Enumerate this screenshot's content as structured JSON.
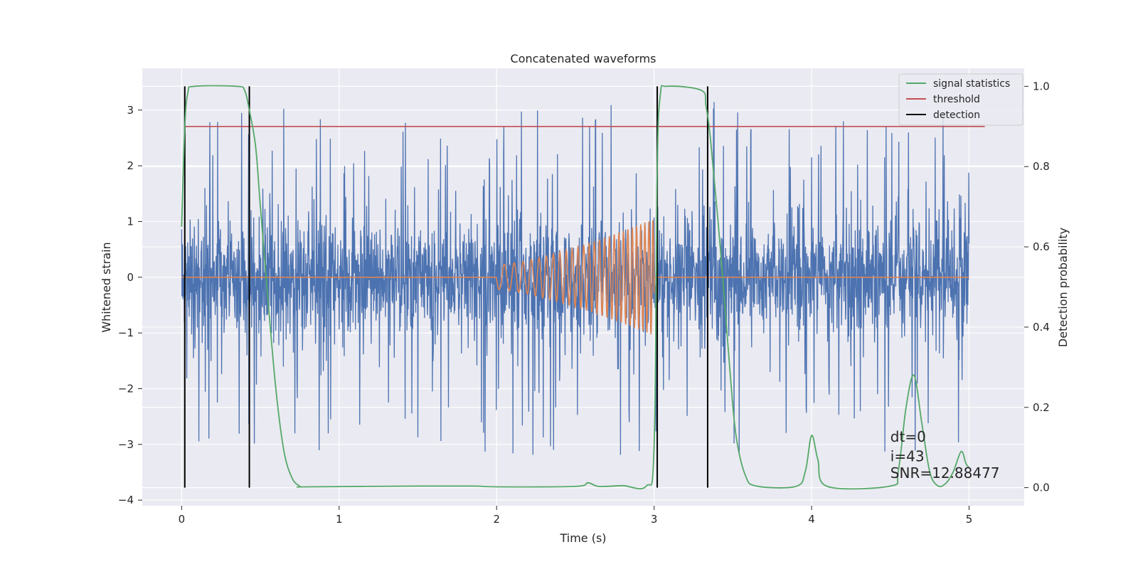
{
  "chart_data": {
    "type": "line",
    "title": "Concatenated waveforms",
    "xlabel": "Time (s)",
    "ylabel": "Whitened strain",
    "y2label": "Detection probability",
    "xlim": [
      -0.25,
      5.35
    ],
    "ylim": [
      -4.1,
      3.75
    ],
    "y2lim": [
      -0.045,
      1.045
    ],
    "xticks": [
      0,
      1,
      2,
      3,
      4,
      5
    ],
    "yticks": [
      -4,
      -3,
      -2,
      -1,
      0,
      1,
      2,
      3
    ],
    "yticklabels": [
      "−4",
      "−3",
      "−2",
      "−1",
      "0",
      "1",
      "2",
      "3"
    ],
    "y2ticks": [
      0.0,
      0.2,
      0.4,
      0.6,
      0.8,
      1.0
    ],
    "y2ticklabels": [
      "0.0",
      "0.2",
      "0.4",
      "0.6",
      "0.8",
      "1.0"
    ],
    "grid": true,
    "legend_position": "top-right",
    "series": [
      {
        "name": "",
        "axis": "left",
        "color": "#4c72b0",
        "kind": "noise",
        "x_range": [
          0,
          5
        ],
        "core_amplitude": 0.85,
        "peak_amplitude": 3.2
      },
      {
        "name": "",
        "axis": "left",
        "color": "#dd8452",
        "kind": "chirp",
        "x_range": [
          0,
          5
        ],
        "chirp_start": 2.0,
        "chirp_end": 3.0,
        "start_amplitude": 0.22,
        "end_amplitude": 1.05,
        "start_frequency_hz": 14,
        "end_frequency_hz": 40
      },
      {
        "name": "signal statistics",
        "axis": "right",
        "color": "#55a868",
        "x": [
          0.0,
          0.02,
          0.04,
          0.08,
          0.35,
          0.4,
          0.43,
          0.47,
          0.5,
          0.55,
          0.6,
          0.65,
          0.7,
          0.75,
          0.8,
          1.5,
          1.85,
          2.0,
          2.5,
          2.58,
          2.65,
          2.8,
          2.95,
          3.0,
          3.02,
          3.04,
          3.08,
          3.3,
          3.33,
          3.36,
          3.42,
          3.48,
          3.52,
          3.58,
          3.65,
          3.9,
          3.96,
          4.0,
          4.04,
          4.1,
          4.5,
          4.55,
          4.6,
          4.65,
          4.7,
          4.75,
          4.8,
          4.85,
          4.9,
          4.95,
          4.98,
          5.0
        ],
        "y": [
          0.65,
          0.9,
          0.985,
          1.0,
          1.0,
          0.99,
          0.94,
          0.85,
          0.7,
          0.46,
          0.24,
          0.09,
          0.025,
          0.004,
          0.002,
          0.004,
          0.004,
          0.002,
          0.003,
          0.012,
          0.003,
          0.005,
          0.004,
          0.1,
          0.8,
          0.98,
          1.0,
          0.99,
          0.95,
          0.86,
          0.6,
          0.3,
          0.13,
          0.03,
          0.004,
          0.003,
          0.04,
          0.13,
          0.07,
          0.003,
          0.004,
          0.04,
          0.2,
          0.28,
          0.16,
          0.04,
          0.005,
          0.01,
          0.04,
          0.09,
          0.06,
          0.05
        ]
      },
      {
        "name": "threshold",
        "axis": "right",
        "color": "#c44e52",
        "x": [
          0.02,
          5.1
        ],
        "y": [
          0.9,
          0.9
        ]
      },
      {
        "name": "detection",
        "axis": "right",
        "color": "#000000",
        "vlines": [
          0.02,
          0.43,
          3.02,
          3.34
        ],
        "y_range": [
          0.0,
          1.0
        ]
      }
    ],
    "annotations": [
      {
        "text": "dt=0",
        "x": 4.5,
        "y": -2.95
      },
      {
        "text": "i=43",
        "x": 4.5,
        "y": -3.3
      },
      {
        "text": "SNR=12.88477",
        "x": 4.5,
        "y": -3.6
      }
    ]
  }
}
